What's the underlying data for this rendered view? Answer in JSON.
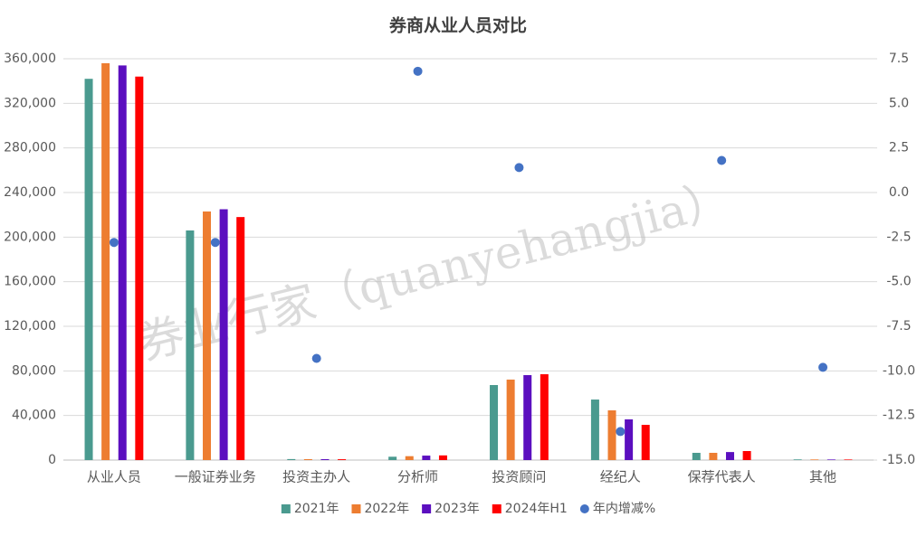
{
  "chart_data": {
    "type": "bar",
    "title": "券商从业人员对比",
    "watermark": "券业行家（quanyehangjia）",
    "categories": [
      "从业人员",
      "一般证券业务",
      "投资主办人",
      "分析师",
      "投资顾问",
      "经纪人",
      "保荐代表人",
      "其他"
    ],
    "series": [
      {
        "name": "2021年",
        "color": "#4a9a8f",
        "values": [
          342000,
          206000,
          900,
          3000,
          67300,
          54300,
          6500,
          600
        ]
      },
      {
        "name": "2022年",
        "color": "#ed7d31",
        "values": [
          356000,
          223000,
          850,
          3500,
          72200,
          44600,
          6500,
          550
        ]
      },
      {
        "name": "2023年",
        "color": "#5b0fbf",
        "values": [
          354000,
          225000,
          800,
          4000,
          76200,
          36500,
          7200,
          520
        ]
      },
      {
        "name": "2024年H1",
        "color": "#ff0000",
        "values": [
          344000,
          218000,
          750,
          4200,
          77000,
          31600,
          8100,
          500
        ]
      },
      {
        "name": "年内增减%",
        "type": "scatter",
        "axis": "y2",
        "color": "#4472c4",
        "values": [
          -2.8,
          -2.8,
          -9.3,
          6.8,
          1.4,
          -13.4,
          1.8,
          -9.8
        ]
      }
    ],
    "ylim": [
      0,
      360000
    ],
    "yticks": [
      0,
      {
        "value": 40000,
        "label": "40,000"
      },
      {
        "value": 80000,
        "label": "80,000"
      },
      {
        "value": 120000,
        "label": "120,000"
      },
      {
        "value": 160000,
        "label": "160,000"
      },
      {
        "value": 200000,
        "label": "200,000"
      },
      {
        "value": 240000,
        "label": "240,000"
      },
      {
        "value": 280000,
        "label": "280,000"
      },
      {
        "value": 320000,
        "label": "320,000"
      },
      {
        "value": 360000,
        "label": "360,000"
      }
    ],
    "y2lim": [
      -15,
      7.5
    ],
    "y2ticks": [
      {
        "value": -15,
        "label": "-15.0"
      },
      -12.5,
      {
        "value": -10,
        "label": "-10.0"
      },
      -7.5,
      {
        "value": -5,
        "label": "-5.0"
      },
      -2.5,
      {
        "value": 0,
        "label": "0.0"
      },
      2.5,
      {
        "value": 5,
        "label": "5.0"
      },
      7.5
    ],
    "grid": true,
    "legend": "bottom"
  }
}
